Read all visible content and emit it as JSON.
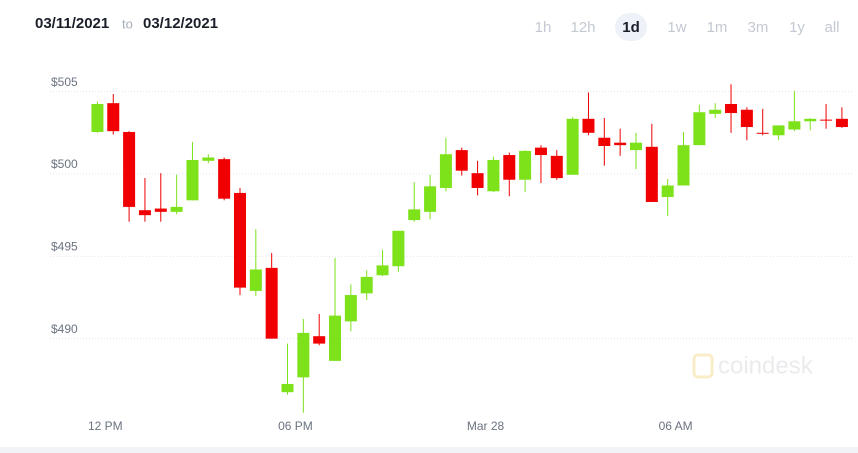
{
  "header": {
    "from": "03/11/2021",
    "to_word": "to",
    "to": "03/12/2021"
  },
  "range_buttons": [
    "1h",
    "12h",
    "1d",
    "1w",
    "1m",
    "3m",
    "1y",
    "all"
  ],
  "selected_range_index": 2,
  "chart_data": {
    "type": "candlestick",
    "x": [
      -0.25,
      0.25,
      0.75,
      1.25,
      1.75,
      2.25,
      2.75,
      3.25,
      3.75,
      4.25,
      4.75,
      5.25,
      5.75,
      6.25,
      6.75,
      7.25,
      7.75,
      8.25,
      8.75,
      9.25,
      9.75,
      10.25,
      10.75,
      11.25,
      11.75,
      12.25,
      12.75,
      13.25,
      13.75,
      14.25,
      14.75,
      15.25,
      15.75,
      16.25,
      16.75,
      17.25,
      17.75,
      18.25,
      18.75,
      19.25,
      19.75,
      20.25,
      20.75,
      21.25,
      21.75,
      22.25,
      22.75,
      23.25
    ],
    "open": [
      502.55,
      504.3,
      502.55,
      497.8,
      497.9,
      497.7,
      498.4,
      500.8,
      500.9,
      498.85,
      492.9,
      494.3,
      486.75,
      487.65,
      490.15,
      488.65,
      491.05,
      492.75,
      493.85,
      494.4,
      497.2,
      497.7,
      499.15,
      501.45,
      500.05,
      498.95,
      501.15,
      499.65,
      501.6,
      501.1,
      499.95,
      503.35,
      502.2,
      501.9,
      501.45,
      501.65,
      498.6,
      499.3,
      501.75,
      503.65,
      504.25,
      503.9,
      502.5,
      502.35,
      502.7,
      503.2,
      503.3,
      503.35
    ],
    "high": [
      504.4,
      504.85,
      502.6,
      499.75,
      500.05,
      499.95,
      501.95,
      501.2,
      501.0,
      499.15,
      496.65,
      495.2,
      489.7,
      491.2,
      491.5,
      494.9,
      493.3,
      494.15,
      495.4,
      496.55,
      499.5,
      499.95,
      502.2,
      501.6,
      500.8,
      501.05,
      501.3,
      501.45,
      501.75,
      501.45,
      503.45,
      504.95,
      503.4,
      502.75,
      502.5,
      503.05,
      499.7,
      502.55,
      504.2,
      504.3,
      505.45,
      504.05,
      503.95,
      502.95,
      505.05,
      503.4,
      504.25,
      504.05
    ],
    "low": [
      502.5,
      502.4,
      497.1,
      497.1,
      497.1,
      497.55,
      498.4,
      500.65,
      498.4,
      492.65,
      492.6,
      490.0,
      486.6,
      485.5,
      489.6,
      488.65,
      490.45,
      492.35,
      493.8,
      494.05,
      497.1,
      497.25,
      498.95,
      499.9,
      498.7,
      498.9,
      498.65,
      498.9,
      499.45,
      499.65,
      499.95,
      502.35,
      500.5,
      501.1,
      500.3,
      498.3,
      497.45,
      499.3,
      501.75,
      503.4,
      502.5,
      502.05,
      502.35,
      502.05,
      502.6,
      502.65,
      502.75,
      502.8
    ],
    "close": [
      504.25,
      502.6,
      498.0,
      497.5,
      497.7,
      498.0,
      500.85,
      501.0,
      498.5,
      493.1,
      494.2,
      490.0,
      487.25,
      490.35,
      489.7,
      491.4,
      492.65,
      493.75,
      494.45,
      496.55,
      497.85,
      499.25,
      501.2,
      500.2,
      499.15,
      500.85,
      499.65,
      501.4,
      501.15,
      499.75,
      503.35,
      502.5,
      501.7,
      501.75,
      501.9,
      498.3,
      499.3,
      501.75,
      503.75,
      503.9,
      503.7,
      502.85,
      502.45,
      502.95,
      503.2,
      503.35,
      503.25,
      502.85
    ],
    "up_color": "#7ee21a",
    "down_color": "#f00000",
    "xlim": [
      -0.8,
      23.6
    ],
    "xticks": [
      {
        "value": 0,
        "label": "12 PM"
      },
      {
        "value": 6,
        "label": "06 PM"
      },
      {
        "value": 12,
        "label": "Mar 28"
      },
      {
        "value": 18,
        "label": "06 AM"
      }
    ],
    "ylim": [
      485,
      507
    ],
    "yticks": [
      {
        "value": 490,
        "label": "$490"
      },
      {
        "value": 495,
        "label": "$495"
      },
      {
        "value": 500,
        "label": "$500"
      },
      {
        "value": 505,
        "label": "$505"
      }
    ],
    "grid": true,
    "watermark": "coindesk"
  }
}
